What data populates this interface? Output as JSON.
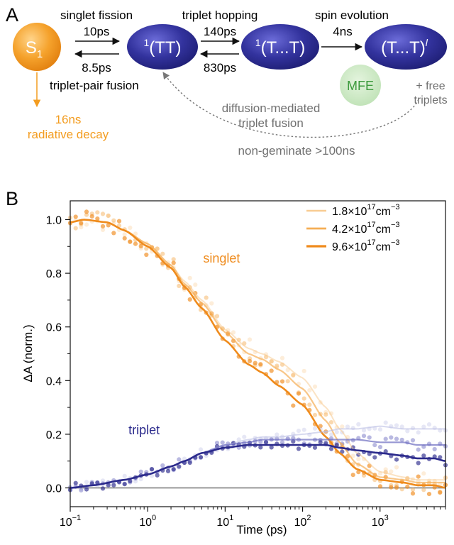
{
  "panel_a": {
    "label": "A",
    "colors": {
      "orange": "#F39C1F",
      "navy": "#2B2A8C",
      "mfe_fill": "#C8E6C0",
      "mfe_text": "#3C9A3C",
      "gray_text": "#707070"
    },
    "states": {
      "s1": {
        "main": "S",
        "sub": "1"
      },
      "tt1": {
        "sup": "1",
        "main": "(TT)"
      },
      "tt2": {
        "sup": "1",
        "main": "(T...T)"
      },
      "tt3": {
        "main": "(T...T)",
        "sup": "l"
      }
    },
    "arrows": {
      "fission_label": "singlet fission",
      "fission_time": "10ps",
      "fusion_time": "8.5ps",
      "fusion_label": "triplet-pair fusion",
      "hop_label": "triplet hopping",
      "hop_fwd_time": "140ps",
      "hop_back_time": "830ps",
      "spin_label": "spin evolution",
      "spin_time": "4ns",
      "mfe": "MFE",
      "free_1": "+ free",
      "free_2": "triplets",
      "decay_time": "16ns",
      "decay_label": "radiative decay",
      "diffusion_1": "diffusion-mediated",
      "diffusion_2": "triplet fusion",
      "nongeminate": "non-geminate >100ns"
    }
  },
  "chart_data": {
    "panel_label": "B",
    "type": "scatter",
    "title": "",
    "xlabel": "Time (ps)",
    "ylabel": "ΔA (norm.)",
    "x_scale": "log",
    "xlim": [
      0.1,
      7000
    ],
    "ylim": [
      -0.07,
      1.07
    ],
    "x_ticks": [
      {
        "value": 0.1,
        "base": "10",
        "exp": "−1"
      },
      {
        "value": 1,
        "base": "10",
        "exp": "0"
      },
      {
        "value": 10,
        "base": "10",
        "exp": "1"
      },
      {
        "value": 100,
        "base": "10",
        "exp": "2"
      },
      {
        "value": 1000,
        "base": "10",
        "exp": "3"
      }
    ],
    "y_ticks": [
      {
        "value": 0.0,
        "label": "0.0"
      },
      {
        "value": 0.2,
        "label": "0.2"
      },
      {
        "value": 0.4,
        "label": "0.4"
      },
      {
        "value": 0.6,
        "label": "0.6"
      },
      {
        "value": 0.8,
        "label": "0.8"
      },
      {
        "value": 1.0,
        "label": "1.0"
      }
    ],
    "grid": false,
    "legend_position": "top-right",
    "legend": [
      {
        "mantissa": "1.8×10",
        "exp": "17",
        "unit": "cm",
        "unit_exp": "−3",
        "color": "#F8CC93",
        "width": 2
      },
      {
        "mantissa": "4.2×10",
        "exp": "17",
        "unit": "cm",
        "unit_exp": "−3",
        "color": "#F5AE55",
        "width": 2.2
      },
      {
        "mantissa": "9.6×10",
        "exp": "17",
        "unit": "cm",
        "unit_exp": "−3",
        "color": "#EF8B1C",
        "width": 2.6
      }
    ],
    "annotations": [
      {
        "text": "singlet",
        "x": 9,
        "y": 0.84,
        "color": "#EF8B1C"
      },
      {
        "text": "triplet",
        "x": 0.9,
        "y": 0.2,
        "color": "#2B2A8C"
      }
    ],
    "baseline": {
      "y": 0.0,
      "color": "#8a8a8a"
    },
    "series": [
      {
        "name": "singlet 1.8×10¹⁷cm⁻³",
        "kind": "singlet",
        "color": "#F8CC93",
        "opacity": 0.45,
        "x": [
          0.1,
          0.15,
          0.3,
          0.5,
          1,
          2,
          3,
          5,
          10,
          20,
          30,
          50,
          100,
          200,
          300,
          500,
          1000,
          2000,
          3000,
          5000,
          7000
        ],
        "y": [
          0.99,
          1.0,
          0.99,
          0.96,
          0.91,
          0.83,
          0.77,
          0.7,
          0.59,
          0.52,
          0.5,
          0.47,
          0.41,
          0.3,
          0.22,
          0.13,
          0.06,
          0.04,
          0.03,
          0.03,
          0.03
        ]
      },
      {
        "name": "singlet 4.2×10¹⁷cm⁻³",
        "kind": "singlet",
        "color": "#F5AE55",
        "opacity": 0.7,
        "x": [
          0.1,
          0.15,
          0.3,
          0.5,
          1,
          2,
          3,
          5,
          10,
          20,
          30,
          50,
          100,
          200,
          300,
          500,
          1000,
          2000,
          3000,
          5000,
          7000
        ],
        "y": [
          0.99,
          1.0,
          0.99,
          0.96,
          0.91,
          0.83,
          0.76,
          0.69,
          0.58,
          0.5,
          0.48,
          0.44,
          0.37,
          0.25,
          0.17,
          0.09,
          0.04,
          0.03,
          0.02,
          0.02,
          0.02
        ]
      },
      {
        "name": "singlet 9.6×10¹⁷cm⁻³",
        "kind": "singlet",
        "color": "#EF8B1C",
        "opacity": 1.0,
        "x": [
          0.1,
          0.15,
          0.3,
          0.5,
          1,
          2,
          3,
          5,
          10,
          20,
          30,
          50,
          100,
          200,
          300,
          500,
          1000,
          2000,
          3000,
          5000,
          7000
        ],
        "y": [
          0.99,
          1.0,
          0.99,
          0.96,
          0.9,
          0.82,
          0.75,
          0.67,
          0.55,
          0.46,
          0.43,
          0.38,
          0.31,
          0.19,
          0.13,
          0.07,
          0.03,
          0.02,
          0.01,
          0.01,
          0.0
        ]
      },
      {
        "name": "triplet 1.8×10¹⁷cm⁻³",
        "kind": "triplet",
        "color": "#B7B9E2",
        "opacity": 0.45,
        "x": [
          0.1,
          0.2,
          0.5,
          1,
          2,
          3,
          5,
          10,
          20,
          30,
          50,
          100,
          200,
          300,
          500,
          1000,
          2000,
          3000,
          5000,
          7000
        ],
        "y": [
          0.0,
          0.01,
          0.03,
          0.05,
          0.08,
          0.1,
          0.13,
          0.16,
          0.18,
          0.19,
          0.19,
          0.2,
          0.21,
          0.22,
          0.22,
          0.23,
          0.22,
          0.22,
          0.22,
          0.22
        ]
      },
      {
        "name": "triplet 4.2×10¹⁷cm⁻³",
        "kind": "triplet",
        "color": "#6C6CC0",
        "opacity": 0.7,
        "x": [
          0.1,
          0.2,
          0.5,
          1,
          2,
          3,
          5,
          10,
          20,
          30,
          50,
          100,
          200,
          300,
          500,
          1000,
          2000,
          3000,
          5000,
          7000
        ],
        "y": [
          0.0,
          0.01,
          0.03,
          0.05,
          0.08,
          0.1,
          0.13,
          0.16,
          0.17,
          0.18,
          0.18,
          0.18,
          0.18,
          0.18,
          0.18,
          0.17,
          0.17,
          0.16,
          0.16,
          0.16
        ]
      },
      {
        "name": "triplet 9.6×10¹⁷cm⁻³",
        "kind": "triplet",
        "color": "#2B2A8C",
        "opacity": 1.0,
        "x": [
          0.1,
          0.2,
          0.5,
          1,
          2,
          3,
          5,
          10,
          20,
          30,
          50,
          100,
          200,
          300,
          500,
          1000,
          2000,
          3000,
          5000,
          7000
        ],
        "y": [
          0.0,
          0.01,
          0.03,
          0.05,
          0.08,
          0.1,
          0.13,
          0.15,
          0.16,
          0.16,
          0.16,
          0.16,
          0.16,
          0.15,
          0.14,
          0.13,
          0.12,
          0.11,
          0.11,
          0.1
        ]
      }
    ]
  }
}
